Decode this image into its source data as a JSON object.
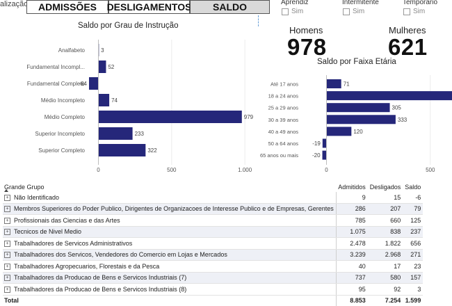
{
  "viz_label": "alização:",
  "tabs": [
    {
      "label": "ADMISSÕES"
    },
    {
      "label": "DESLIGAMENTOS"
    },
    {
      "label": "SALDO"
    }
  ],
  "filters": [
    {
      "title": "Aprendiz",
      "option": "Sim"
    },
    {
      "title": "Intermitente",
      "option": "Sim"
    },
    {
      "title": "Temporário",
      "option": "Sim"
    }
  ],
  "kpis": {
    "homens_label": "Homens",
    "homens_value": "978",
    "mulheres_label": "Mulheres",
    "mulheres_value": "621"
  },
  "chart_data": [
    {
      "type": "bar",
      "orientation": "horizontal",
      "title": "Saldo por Grau de Instrução",
      "categories": [
        "Analfabeto",
        "Fundamental Incompl...",
        "Fundamental Completo",
        "Médio Incompleto",
        "Médio Completo",
        "Superior Incompleto",
        "Superior Completo"
      ],
      "values": [
        3,
        52,
        -64,
        74,
        979,
        233,
        322
      ],
      "xlim": [
        -64,
        1000
      ],
      "xticks": [
        "0",
        "500",
        "1.000"
      ],
      "color": "#25277a"
    },
    {
      "type": "bar",
      "orientation": "horizontal",
      "title": "Saldo por Faixa Etária",
      "categories": [
        "Até 17 anos",
        "18 a 24 anos",
        "25 a 29 anos",
        "30 a 39 anos",
        "40 a 49 anos",
        "50 a 64 anos",
        "65 anos ou mais"
      ],
      "values": [
        71,
        809,
        305,
        333,
        120,
        -19,
        -20
      ],
      "xlim": [
        -20,
        1000
      ],
      "xticks": [
        "0",
        "500",
        "1.00"
      ],
      "color": "#25277a"
    }
  ],
  "table": {
    "headers": [
      "Grande Grupo",
      "Admitidos",
      "Desligados",
      "Saldo"
    ],
    "expand_glyph": "+",
    "rows": [
      [
        "Não Identificado",
        "9",
        "15",
        "-6"
      ],
      [
        "Membros Superiores do Poder Publico, Dirigentes de Organizacoes de Interesse Publico e de Empresas, Gerentes",
        "286",
        "207",
        "79"
      ],
      [
        "Profissionais das Ciencias e das Artes",
        "785",
        "660",
        "125"
      ],
      [
        "Tecnicos de Nivel Medio",
        "1.075",
        "838",
        "237"
      ],
      [
        "Trabalhadores de Servicos Administrativos",
        "2.478",
        "1.822",
        "656"
      ],
      [
        "Trabalhadores dos Servicos, Vendedores do Comercio em Lojas e Mercados",
        "3.239",
        "2.968",
        "271"
      ],
      [
        "Trabalhadores Agropecuarios, Florestais e da Pesca",
        "40",
        "17",
        "23"
      ],
      [
        "Trabalhadores da Producao de Bens e Servicos Industriais (7)",
        "737",
        "580",
        "157"
      ],
      [
        "Trabalhadores da Producao de Bens e Servicos Industriais (8)",
        "95",
        "92",
        "3"
      ]
    ],
    "total": [
      "Total",
      "8.853",
      "7.254",
      "1.599"
    ]
  }
}
